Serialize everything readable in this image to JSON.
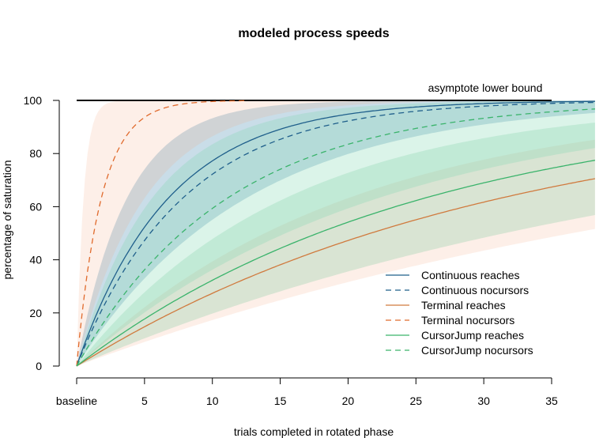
{
  "chart_data": {
    "type": "line",
    "title": "modeled process speeds",
    "xlabel": "trials completed in rotated phase",
    "ylabel": "percentage of saturation",
    "xlim": [
      0,
      35
    ],
    "ylim": [
      0,
      100
    ],
    "x_ticks": [
      {
        "value": 0,
        "label": "baseline"
      },
      {
        "value": 5,
        "label": "5"
      },
      {
        "value": 10,
        "label": "10"
      },
      {
        "value": 15,
        "label": "15"
      },
      {
        "value": 20,
        "label": "20"
      },
      {
        "value": 25,
        "label": "25"
      },
      {
        "value": 30,
        "label": "30"
      },
      {
        "value": 35,
        "label": "35"
      }
    ],
    "y_ticks": [
      {
        "value": 0,
        "label": "0"
      },
      {
        "value": 20,
        "label": "20"
      },
      {
        "value": 40,
        "label": "40"
      },
      {
        "value": 60,
        "label": "60"
      },
      {
        "value": 80,
        "label": "80"
      },
      {
        "value": 100,
        "label": "100"
      }
    ],
    "annotation": {
      "text": "asymptote lower bound",
      "x": [
        0,
        35
      ],
      "y": 100
    },
    "legend_position": "bottom-right",
    "grid": false,
    "x_range_drawn": [
      0,
      38.3
    ],
    "series": [
      {
        "name": "Continuous reaches",
        "color": "#1f5f8b",
        "dash": "solid",
        "rate": 0.148,
        "band": [
          0.08,
          0.27
        ],
        "band_color": "#1f6f9f",
        "band_opacity": 0.24
      },
      {
        "name": "Continuous nocursors",
        "color": "#1f5f8b",
        "dash": "dashed",
        "rate": 0.128,
        "band": [
          0.065,
          0.24
        ],
        "band_color": "#1f6f9f",
        "band_opacity": 0.0
      },
      {
        "name": "Terminal reaches",
        "color": "#d07a3e",
        "dash": "solid",
        "rate": 0.032,
        "band": [
          0.019,
          0.05
        ],
        "band_color": "#f4a582",
        "band_opacity": 0.18
      },
      {
        "name": "Terminal nocursors",
        "color": "#e06a2c",
        "dash": "dashed",
        "rate": 0.55,
        "band": [
          0.2,
          2.0
        ],
        "band_color": "#f4a582",
        "band_opacity": 0.18
      },
      {
        "name": "CursorJump reaches",
        "color": "#3ab36b",
        "dash": "solid",
        "rate": 0.039,
        "band": [
          0.022,
          0.065
        ],
        "band_color": "#5cc08a",
        "band_opacity": 0.22
      },
      {
        "name": "CursorJump nocursors",
        "color": "#3ab36b",
        "dash": "dashed",
        "rate": 0.09,
        "band": [
          0.045,
          0.18
        ],
        "band_color": "#7fd6b0",
        "band_opacity": 0.28
      }
    ]
  }
}
